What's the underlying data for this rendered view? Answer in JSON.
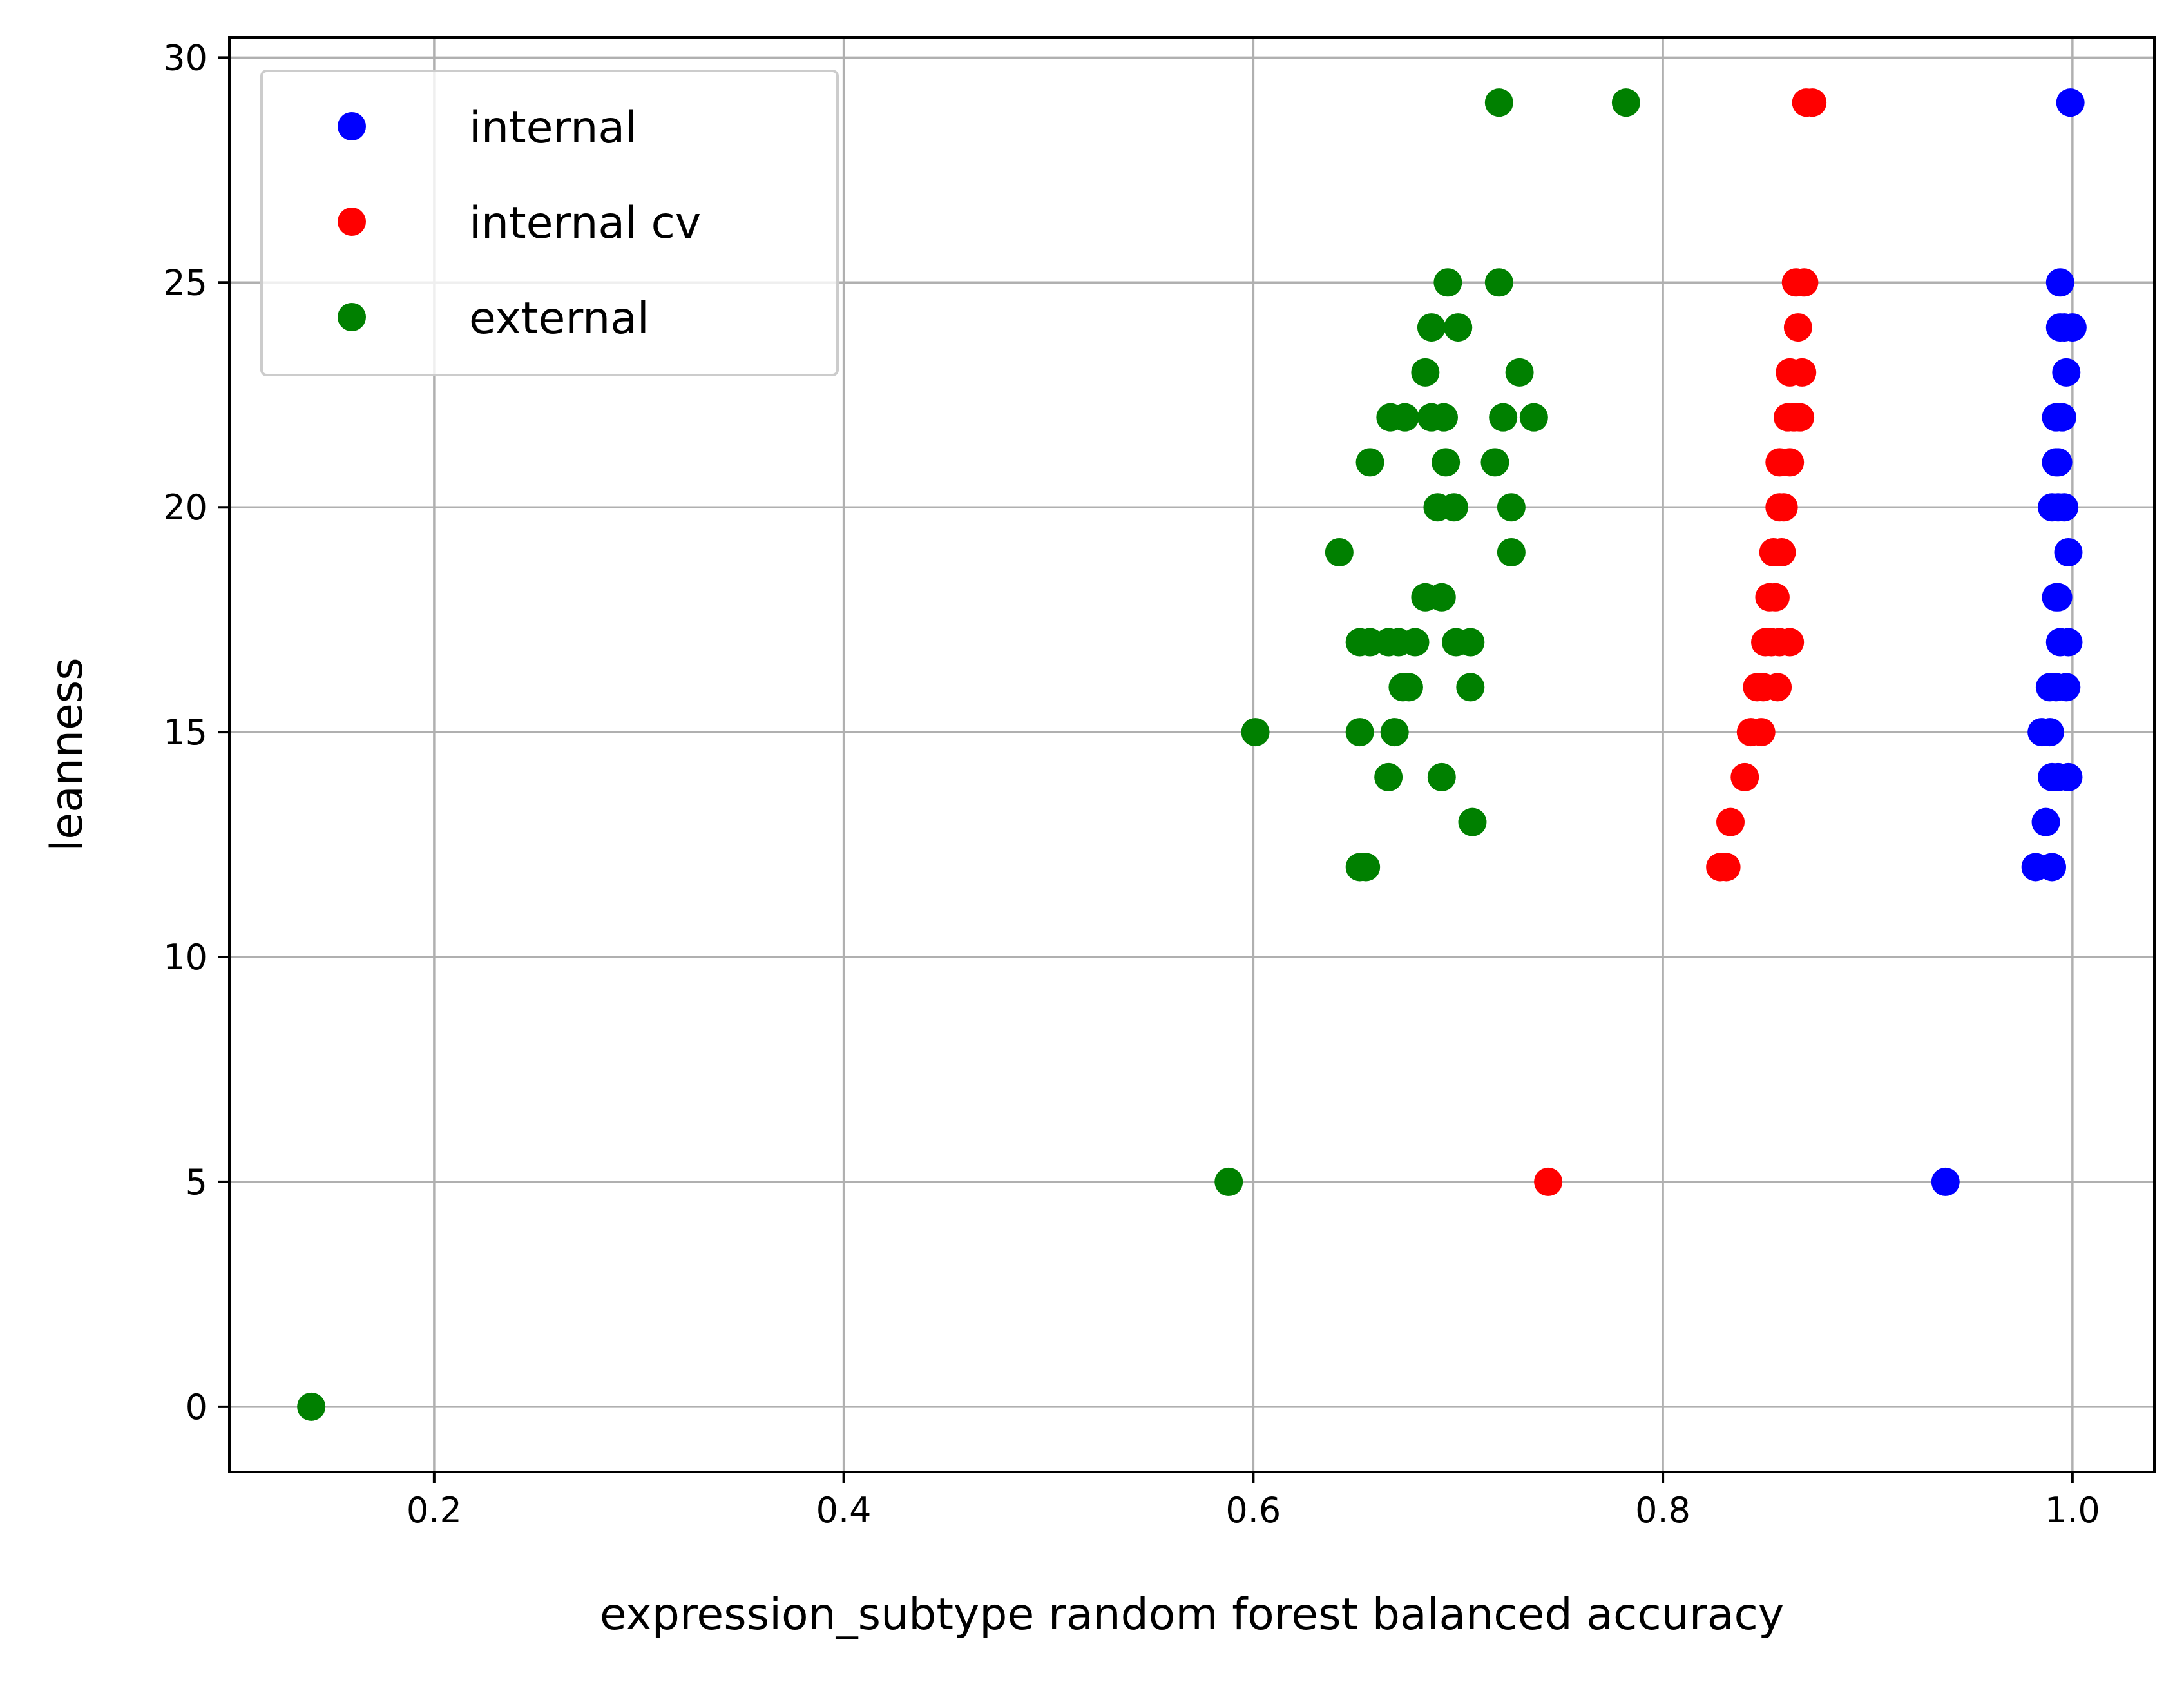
{
  "chart_data": {
    "type": "scatter",
    "xlabel": "expression_subtype random forest balanced accuracy",
    "ylabel": "leanness",
    "xlim": [
      0.1,
      1.04
    ],
    "ylim": [
      -1.45,
      30.45
    ],
    "xticks": [
      {
        "value": 0.2,
        "label": "0.2"
      },
      {
        "value": 0.4,
        "label": "0.4"
      },
      {
        "value": 0.6,
        "label": "0.6"
      },
      {
        "value": 0.8,
        "label": "0.8"
      },
      {
        "value": 1.0,
        "label": "1.0"
      }
    ],
    "yticks": [
      {
        "value": 0,
        "label": "0"
      },
      {
        "value": 5,
        "label": "5"
      },
      {
        "value": 10,
        "label": "10"
      },
      {
        "value": 15,
        "label": "15"
      },
      {
        "value": 20,
        "label": "20"
      },
      {
        "value": 25,
        "label": "25"
      },
      {
        "value": 30,
        "label": "30"
      }
    ],
    "grid": true,
    "legend_position": "upper left",
    "series": [
      {
        "name": "internal",
        "color": "#0000ff",
        "points": [
          [
            0.938,
            5
          ],
          [
            0.982,
            12
          ],
          [
            0.99,
            12
          ],
          [
            0.987,
            13
          ],
          [
            0.99,
            14
          ],
          [
            0.993,
            14
          ],
          [
            0.998,
            14
          ],
          [
            0.985,
            15
          ],
          [
            0.989,
            15
          ],
          [
            0.989,
            16
          ],
          [
            0.992,
            16
          ],
          [
            0.997,
            16
          ],
          [
            0.994,
            17
          ],
          [
            0.998,
            17
          ],
          [
            0.992,
            18
          ],
          [
            0.993,
            18
          ],
          [
            0.998,
            19
          ],
          [
            0.99,
            20
          ],
          [
            0.993,
            20
          ],
          [
            0.996,
            20
          ],
          [
            0.992,
            21
          ],
          [
            0.993,
            21
          ],
          [
            0.992,
            22
          ],
          [
            0.995,
            22
          ],
          [
            0.997,
            23
          ],
          [
            0.994,
            24
          ],
          [
            0.996,
            24
          ],
          [
            1.0,
            24
          ],
          [
            0.994,
            25
          ],
          [
            0.999,
            29
          ]
        ]
      },
      {
        "name": "internal cv",
        "color": "#ff0000",
        "points": [
          [
            0.744,
            5
          ],
          [
            0.828,
            12
          ],
          [
            0.831,
            12
          ],
          [
            0.833,
            13
          ],
          [
            0.84,
            14
          ],
          [
            0.843,
            15
          ],
          [
            0.848,
            15
          ],
          [
            0.846,
            16
          ],
          [
            0.849,
            16
          ],
          [
            0.856,
            16
          ],
          [
            0.85,
            17
          ],
          [
            0.853,
            17
          ],
          [
            0.857,
            17
          ],
          [
            0.862,
            17
          ],
          [
            0.852,
            18
          ],
          [
            0.855,
            18
          ],
          [
            0.854,
            19
          ],
          [
            0.858,
            19
          ],
          [
            0.857,
            20
          ],
          [
            0.859,
            20
          ],
          [
            0.857,
            21
          ],
          [
            0.862,
            21
          ],
          [
            0.861,
            22
          ],
          [
            0.864,
            22
          ],
          [
            0.867,
            22
          ],
          [
            0.862,
            23
          ],
          [
            0.868,
            23
          ],
          [
            0.866,
            24
          ],
          [
            0.865,
            25
          ],
          [
            0.869,
            25
          ],
          [
            0.87,
            29
          ],
          [
            0.873,
            29
          ]
        ]
      },
      {
        "name": "external",
        "color": "#008000",
        "points": [
          [
            0.14,
            0
          ],
          [
            0.588,
            5
          ],
          [
            0.652,
            12
          ],
          [
            0.655,
            12
          ],
          [
            0.707,
            13
          ],
          [
            0.666,
            14
          ],
          [
            0.692,
            14
          ],
          [
            0.601,
            15
          ],
          [
            0.652,
            15
          ],
          [
            0.669,
            15
          ],
          [
            0.673,
            16
          ],
          [
            0.676,
            16
          ],
          [
            0.706,
            16
          ],
          [
            0.652,
            17
          ],
          [
            0.657,
            17
          ],
          [
            0.666,
            17
          ],
          [
            0.671,
            17
          ],
          [
            0.679,
            17
          ],
          [
            0.699,
            17
          ],
          [
            0.706,
            17
          ],
          [
            0.684,
            18
          ],
          [
            0.692,
            18
          ],
          [
            0.642,
            19
          ],
          [
            0.726,
            19
          ],
          [
            0.69,
            20
          ],
          [
            0.698,
            20
          ],
          [
            0.726,
            20
          ],
          [
            0.657,
            21
          ],
          [
            0.694,
            21
          ],
          [
            0.718,
            21
          ],
          [
            0.667,
            22
          ],
          [
            0.674,
            22
          ],
          [
            0.687,
            22
          ],
          [
            0.693,
            22
          ],
          [
            0.722,
            22
          ],
          [
            0.737,
            22
          ],
          [
            0.684,
            23
          ],
          [
            0.73,
            23
          ],
          [
            0.687,
            24
          ],
          [
            0.7,
            24
          ],
          [
            0.695,
            25
          ],
          [
            0.72,
            25
          ],
          [
            0.72,
            29
          ],
          [
            0.782,
            29
          ]
        ]
      }
    ]
  }
}
